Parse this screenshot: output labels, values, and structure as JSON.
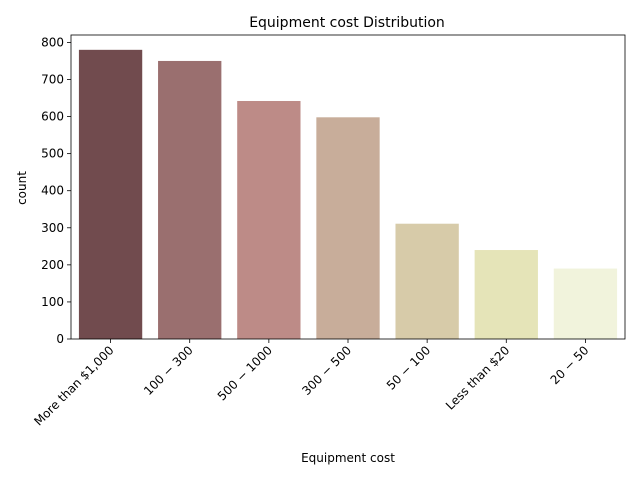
{
  "chart_data": {
    "type": "bar",
    "title": "Equipment cost Distribution",
    "xlabel": "Equipment cost",
    "ylabel": "count",
    "categories": [
      "More than $1,000",
      "$100 - $300",
      "$500 - $1000",
      "$300 - $500",
      "$50 - $100",
      "Less than $20",
      "$20 - $50"
    ],
    "category_display": [
      "More than $1,000",
      "100 − 300",
      "500 − 1000",
      "300 − 500",
      "50 − 100",
      "Less than $20",
      "20 − 50"
    ],
    "values": [
      780,
      750,
      642,
      598,
      311,
      240,
      190
    ],
    "colors": [
      "#714b4e",
      "#9a6f6f",
      "#bd8b87",
      "#c8ad9a",
      "#d7cba9",
      "#e5e4b8",
      "#f1f3dc"
    ],
    "ylim": [
      0,
      820
    ],
    "yticks": [
      0,
      100,
      200,
      300,
      400,
      500,
      600,
      700,
      800
    ],
    "grid": false,
    "legend": "none"
  }
}
